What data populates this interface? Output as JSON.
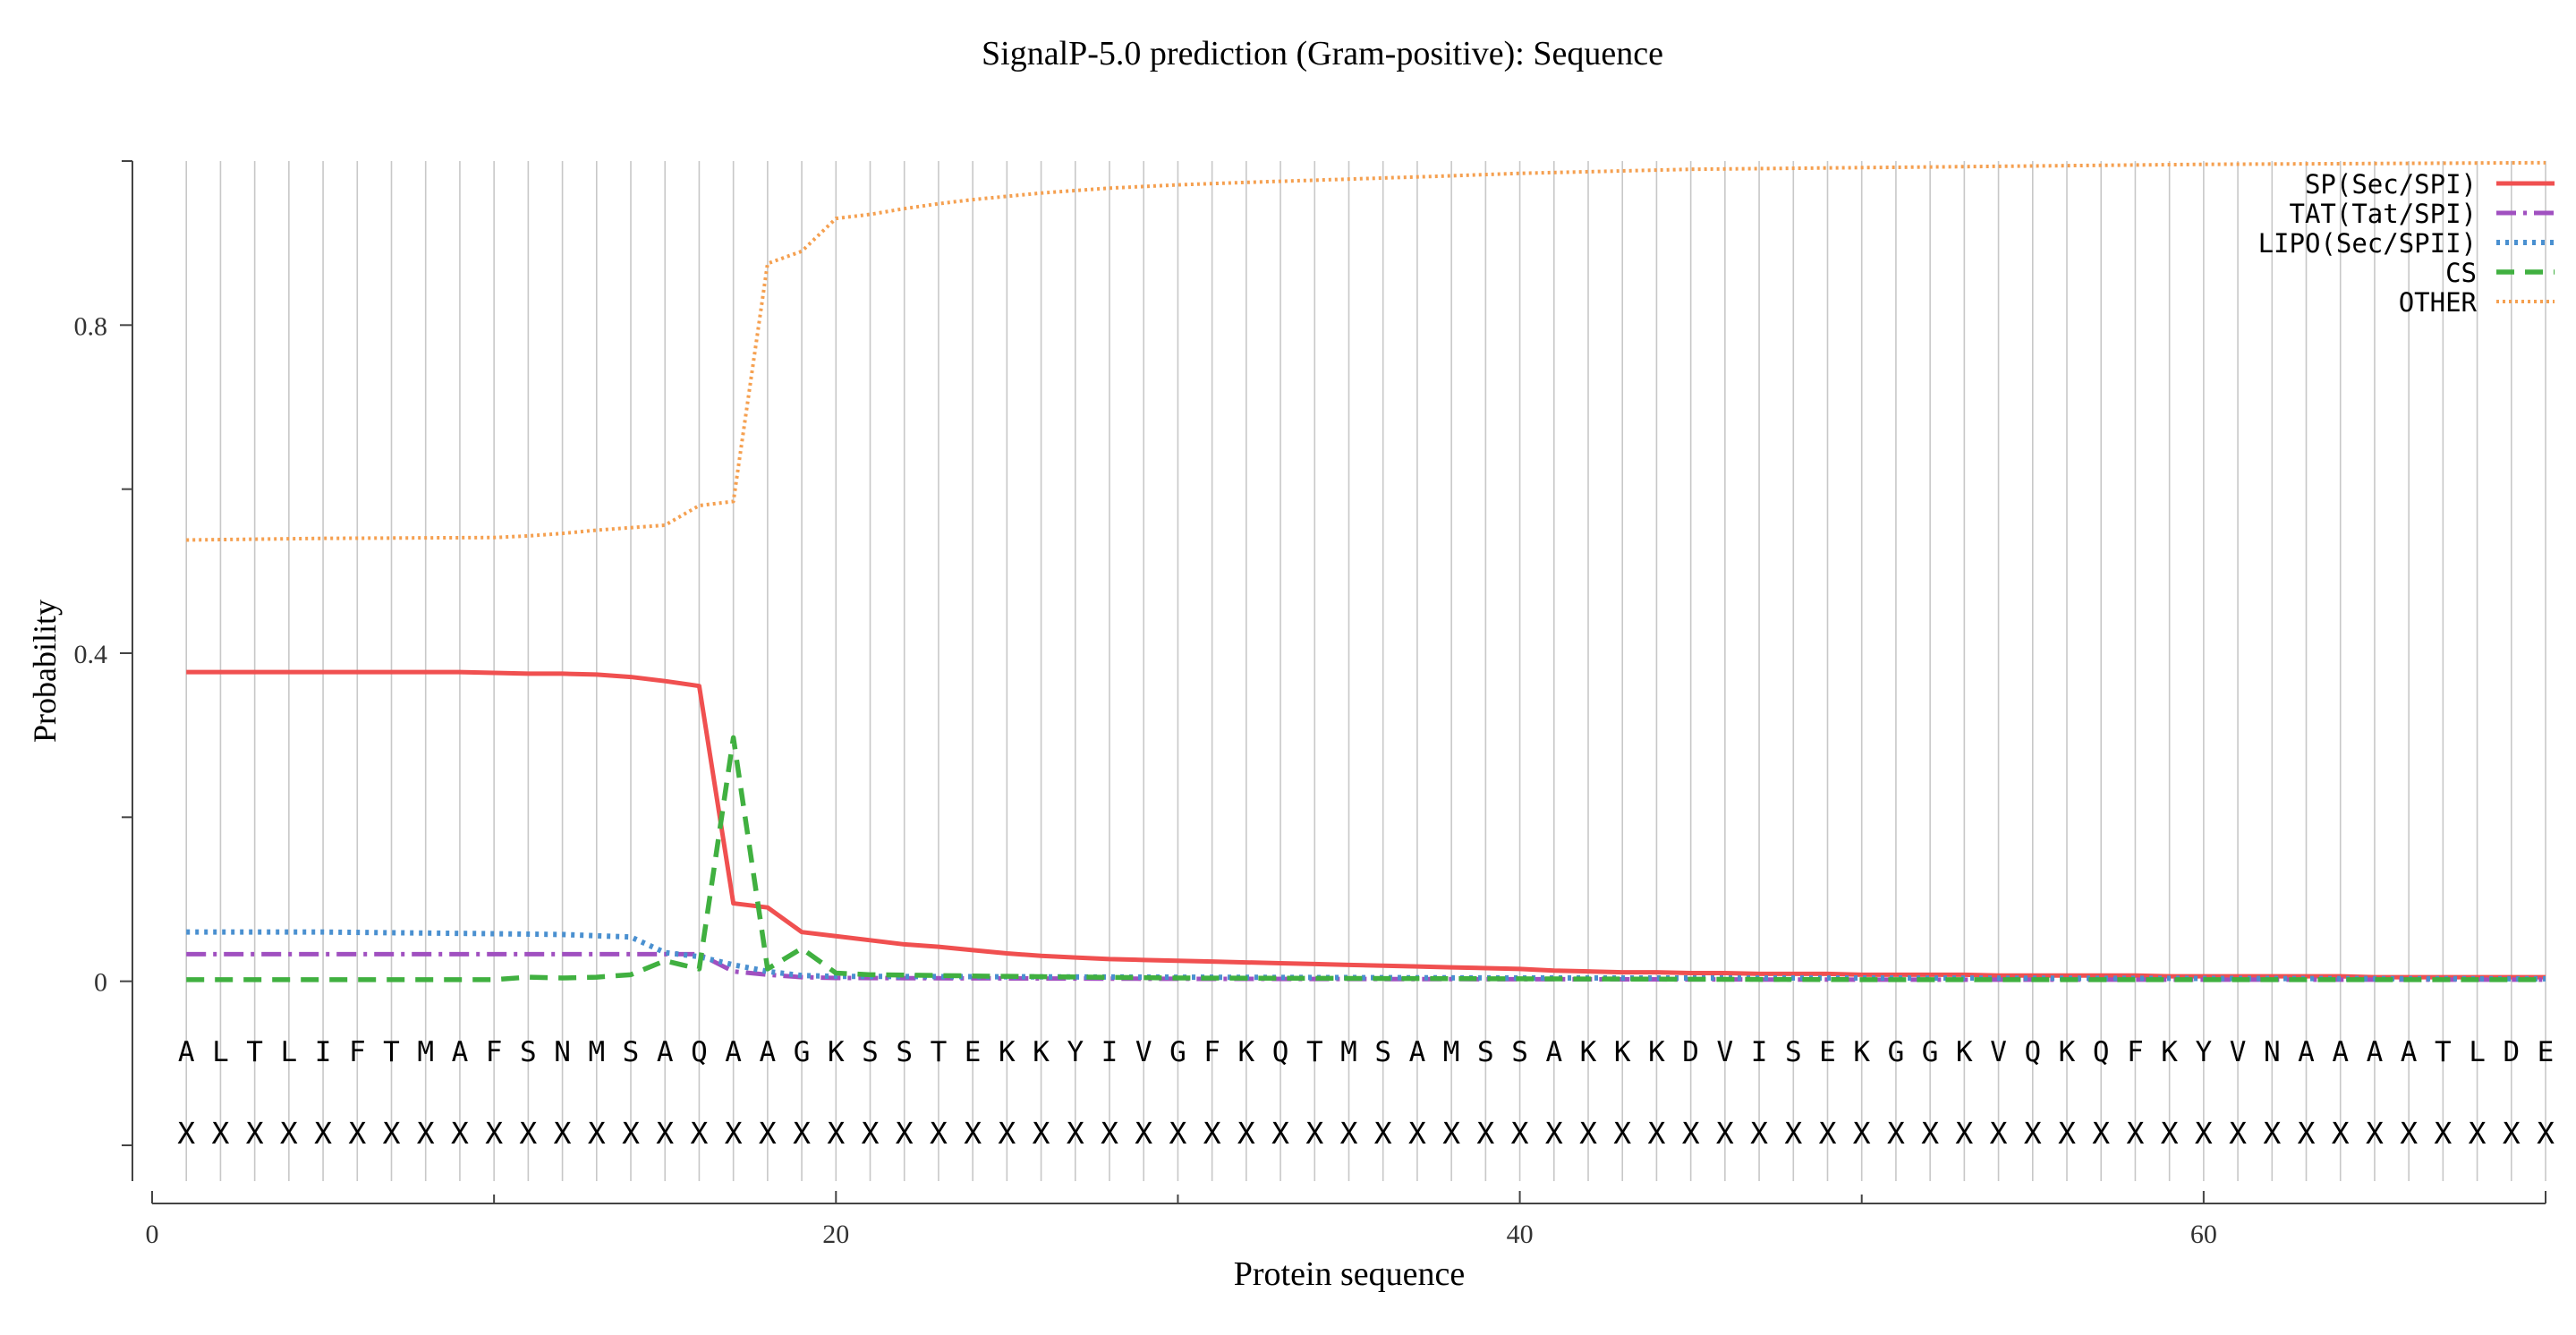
{
  "chart_data": {
    "type": "line",
    "title": "SignalP-5.0 prediction (Gram-positive):  Sequence",
    "xlabel": "Protein sequence",
    "ylabel": "Probability",
    "xlim": [
      0,
      70
    ],
    "ylim": [
      -0.2,
      1.0
    ],
    "x_ticks": [
      0,
      20,
      40,
      60
    ],
    "x_minor_ticks": [
      10,
      30,
      50
    ],
    "y_ticks": [
      0,
      0.4,
      0.8
    ],
    "y_minor_ticks": [
      -0.2,
      0.2,
      0.6,
      1.0
    ],
    "grid": "vertical lines at each residue position",
    "legend_position": "top-right",
    "sequence": [
      "A",
      "L",
      "T",
      "L",
      "I",
      "F",
      "T",
      "M",
      "A",
      "F",
      "S",
      "N",
      "M",
      "S",
      "A",
      "Q",
      "A",
      "A",
      "G",
      "K",
      "S",
      "S",
      "T",
      "E",
      "K",
      "K",
      "Y",
      "I",
      "V",
      "G",
      "F",
      "K",
      "Q",
      "T",
      "M",
      "S",
      "A",
      "M",
      "S",
      "S",
      "A",
      "K",
      "K",
      "K",
      "D",
      "V",
      "I",
      "S",
      "E",
      "K",
      "G",
      "G",
      "K",
      "V",
      "Q",
      "K",
      "Q",
      "F",
      "K",
      "Y",
      "V",
      "N",
      "A",
      "A",
      "A",
      "A",
      "T",
      "L",
      "D",
      "E"
    ],
    "annotation_marker": "X",
    "series": [
      {
        "name": "SP(Sec/SPI)",
        "color": "#f05050",
        "dash": "solid",
        "points": [
          [
            1,
            0.377
          ],
          [
            2,
            0.377
          ],
          [
            3,
            0.377
          ],
          [
            4,
            0.377
          ],
          [
            5,
            0.377
          ],
          [
            6,
            0.377
          ],
          [
            7,
            0.377
          ],
          [
            8,
            0.377
          ],
          [
            9,
            0.377
          ],
          [
            10,
            0.376
          ],
          [
            11,
            0.375
          ],
          [
            12,
            0.375
          ],
          [
            13,
            0.374
          ],
          [
            14,
            0.371
          ],
          [
            15,
            0.366
          ],
          [
            16,
            0.36
          ],
          [
            17,
            0.095
          ],
          [
            18,
            0.09
          ],
          [
            19,
            0.06
          ],
          [
            20,
            0.055
          ],
          [
            21,
            0.05
          ],
          [
            22,
            0.045
          ],
          [
            23,
            0.042
          ],
          [
            24,
            0.038
          ],
          [
            25,
            0.034
          ],
          [
            26,
            0.031
          ],
          [
            27,
            0.029
          ],
          [
            28,
            0.027
          ],
          [
            29,
            0.026
          ],
          [
            30,
            0.025
          ],
          [
            31,
            0.024
          ],
          [
            32,
            0.023
          ],
          [
            33,
            0.022
          ],
          [
            34,
            0.021
          ],
          [
            35,
            0.02
          ],
          [
            36,
            0.019
          ],
          [
            37,
            0.018
          ],
          [
            38,
            0.017
          ],
          [
            39,
            0.016
          ],
          [
            40,
            0.015
          ],
          [
            41,
            0.013
          ],
          [
            42,
            0.012
          ],
          [
            43,
            0.011
          ],
          [
            44,
            0.011
          ],
          [
            45,
            0.01
          ],
          [
            46,
            0.01
          ],
          [
            47,
            0.009
          ],
          [
            48,
            0.009
          ],
          [
            49,
            0.009
          ],
          [
            50,
            0.008
          ],
          [
            51,
            0.008
          ],
          [
            52,
            0.008
          ],
          [
            53,
            0.008
          ],
          [
            54,
            0.007
          ],
          [
            55,
            0.007
          ],
          [
            56,
            0.007
          ],
          [
            57,
            0.007
          ],
          [
            58,
            0.007
          ],
          [
            59,
            0.006
          ],
          [
            60,
            0.006
          ],
          [
            61,
            0.006
          ],
          [
            62,
            0.006
          ],
          [
            63,
            0.006
          ],
          [
            64,
            0.006
          ],
          [
            65,
            0.005
          ],
          [
            66,
            0.005
          ],
          [
            67,
            0.005
          ],
          [
            68,
            0.005
          ],
          [
            69,
            0.005
          ],
          [
            70,
            0.005
          ]
        ]
      },
      {
        "name": "TAT(Tat/SPI)",
        "color": "#a050c0",
        "dash": "dashdot",
        "points": [
          [
            1,
            0.033
          ],
          [
            14,
            0.033
          ],
          [
            15,
            0.033
          ],
          [
            16,
            0.033
          ],
          [
            17,
            0.012
          ],
          [
            18,
            0.008
          ],
          [
            19,
            0.005
          ],
          [
            20,
            0.004
          ],
          [
            30,
            0.003
          ],
          [
            50,
            0.002
          ],
          [
            70,
            0.002
          ]
        ]
      },
      {
        "name": "LIPO(Sec/SPII)",
        "color": "#4a90d0",
        "dash": "dotted",
        "points": [
          [
            1,
            0.06
          ],
          [
            5,
            0.06
          ],
          [
            10,
            0.058
          ],
          [
            12,
            0.057
          ],
          [
            14,
            0.054
          ],
          [
            15,
            0.035
          ],
          [
            16,
            0.03
          ],
          [
            17,
            0.02
          ],
          [
            18,
            0.012
          ],
          [
            19,
            0.007
          ],
          [
            20,
            0.006
          ],
          [
            30,
            0.005
          ],
          [
            40,
            0.004
          ],
          [
            50,
            0.004
          ],
          [
            70,
            0.003
          ]
        ]
      },
      {
        "name": "CS",
        "color": "#40b040",
        "dash": "dashed",
        "points": [
          [
            1,
            0.002
          ],
          [
            10,
            0.002
          ],
          [
            11,
            0.005
          ],
          [
            12,
            0.004
          ],
          [
            13,
            0.005
          ],
          [
            14,
            0.008
          ],
          [
            15,
            0.025
          ],
          [
            16,
            0.015
          ],
          [
            17,
            0.297
          ],
          [
            18,
            0.015
          ],
          [
            19,
            0.04
          ],
          [
            20,
            0.01
          ],
          [
            21,
            0.008
          ],
          [
            25,
            0.006
          ],
          [
            30,
            0.004
          ],
          [
            40,
            0.003
          ],
          [
            50,
            0.002
          ],
          [
            70,
            0.002
          ]
        ]
      },
      {
        "name": "OTHER",
        "color": "#f5a050",
        "dash": "finedotted",
        "points": [
          [
            1,
            0.538
          ],
          [
            5,
            0.54
          ],
          [
            10,
            0.541
          ],
          [
            11,
            0.543
          ],
          [
            12,
            0.546
          ],
          [
            13,
            0.55
          ],
          [
            14,
            0.553
          ],
          [
            15,
            0.556
          ],
          [
            16,
            0.58
          ],
          [
            17,
            0.585
          ],
          [
            18,
            0.875
          ],
          [
            19,
            0.89
          ],
          [
            20,
            0.93
          ],
          [
            21,
            0.935
          ],
          [
            22,
            0.942
          ],
          [
            23,
            0.948
          ],
          [
            24,
            0.953
          ],
          [
            25,
            0.957
          ],
          [
            26,
            0.961
          ],
          [
            27,
            0.964
          ],
          [
            28,
            0.967
          ],
          [
            29,
            0.969
          ],
          [
            30,
            0.971
          ],
          [
            32,
            0.974
          ],
          [
            35,
            0.978
          ],
          [
            38,
            0.982
          ],
          [
            40,
            0.985
          ],
          [
            43,
            0.988
          ],
          [
            45,
            0.99
          ],
          [
            50,
            0.992
          ],
          [
            55,
            0.994
          ],
          [
            60,
            0.996
          ],
          [
            65,
            0.997
          ],
          [
            70,
            0.998
          ]
        ]
      }
    ]
  }
}
